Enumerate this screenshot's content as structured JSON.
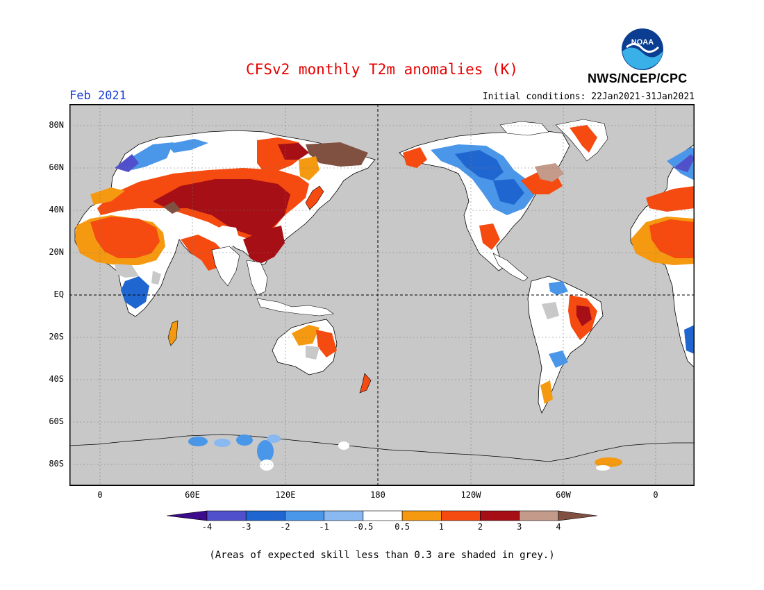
{
  "header": {
    "title": "CFSv2 monthly T2m anomalies (K)",
    "month": "Feb 2021",
    "initial_conditions": "Initial conditions: 22Jan2021-31Jan2021",
    "agency": "NWS/NCEP/CPC",
    "logo_text": "NOAA"
  },
  "map": {
    "lat_labels": [
      "80N",
      "60N",
      "40N",
      "20N",
      "EQ",
      "20S",
      "40S",
      "60S",
      "80S"
    ],
    "lon_labels": [
      "0",
      "60E",
      "120E",
      "180",
      "120W",
      "60W",
      "0"
    ],
    "ocean_color": "#c8c8c8",
    "coastline_color": "#000000",
    "reference_lines": [
      "equator",
      "dateline"
    ]
  },
  "legend": {
    "tick_labels": [
      "-4",
      "-3",
      "-2",
      "-1",
      "-0.5",
      "0.5",
      "1",
      "2",
      "3",
      "4"
    ],
    "colors": [
      "#3c0c8c",
      "#5050cc",
      "#2066d0",
      "#4a96e8",
      "#8ab8f0",
      "#ffffff",
      "#f59a10",
      "#f54a10",
      "#a50f15",
      "#c49a8a",
      "#805040"
    ],
    "bins": [
      "< -4",
      "-4 to -3",
      "-3 to -2",
      "-2 to -1",
      "-1 to -0.5",
      "-0.5 to 0.5",
      "0.5 to 1",
      "1 to 2",
      "2 to 3",
      "3 to 4",
      "> 4"
    ]
  },
  "footnote": "(Areas of expected skill less than 0.3 are shaded in grey.)"
}
